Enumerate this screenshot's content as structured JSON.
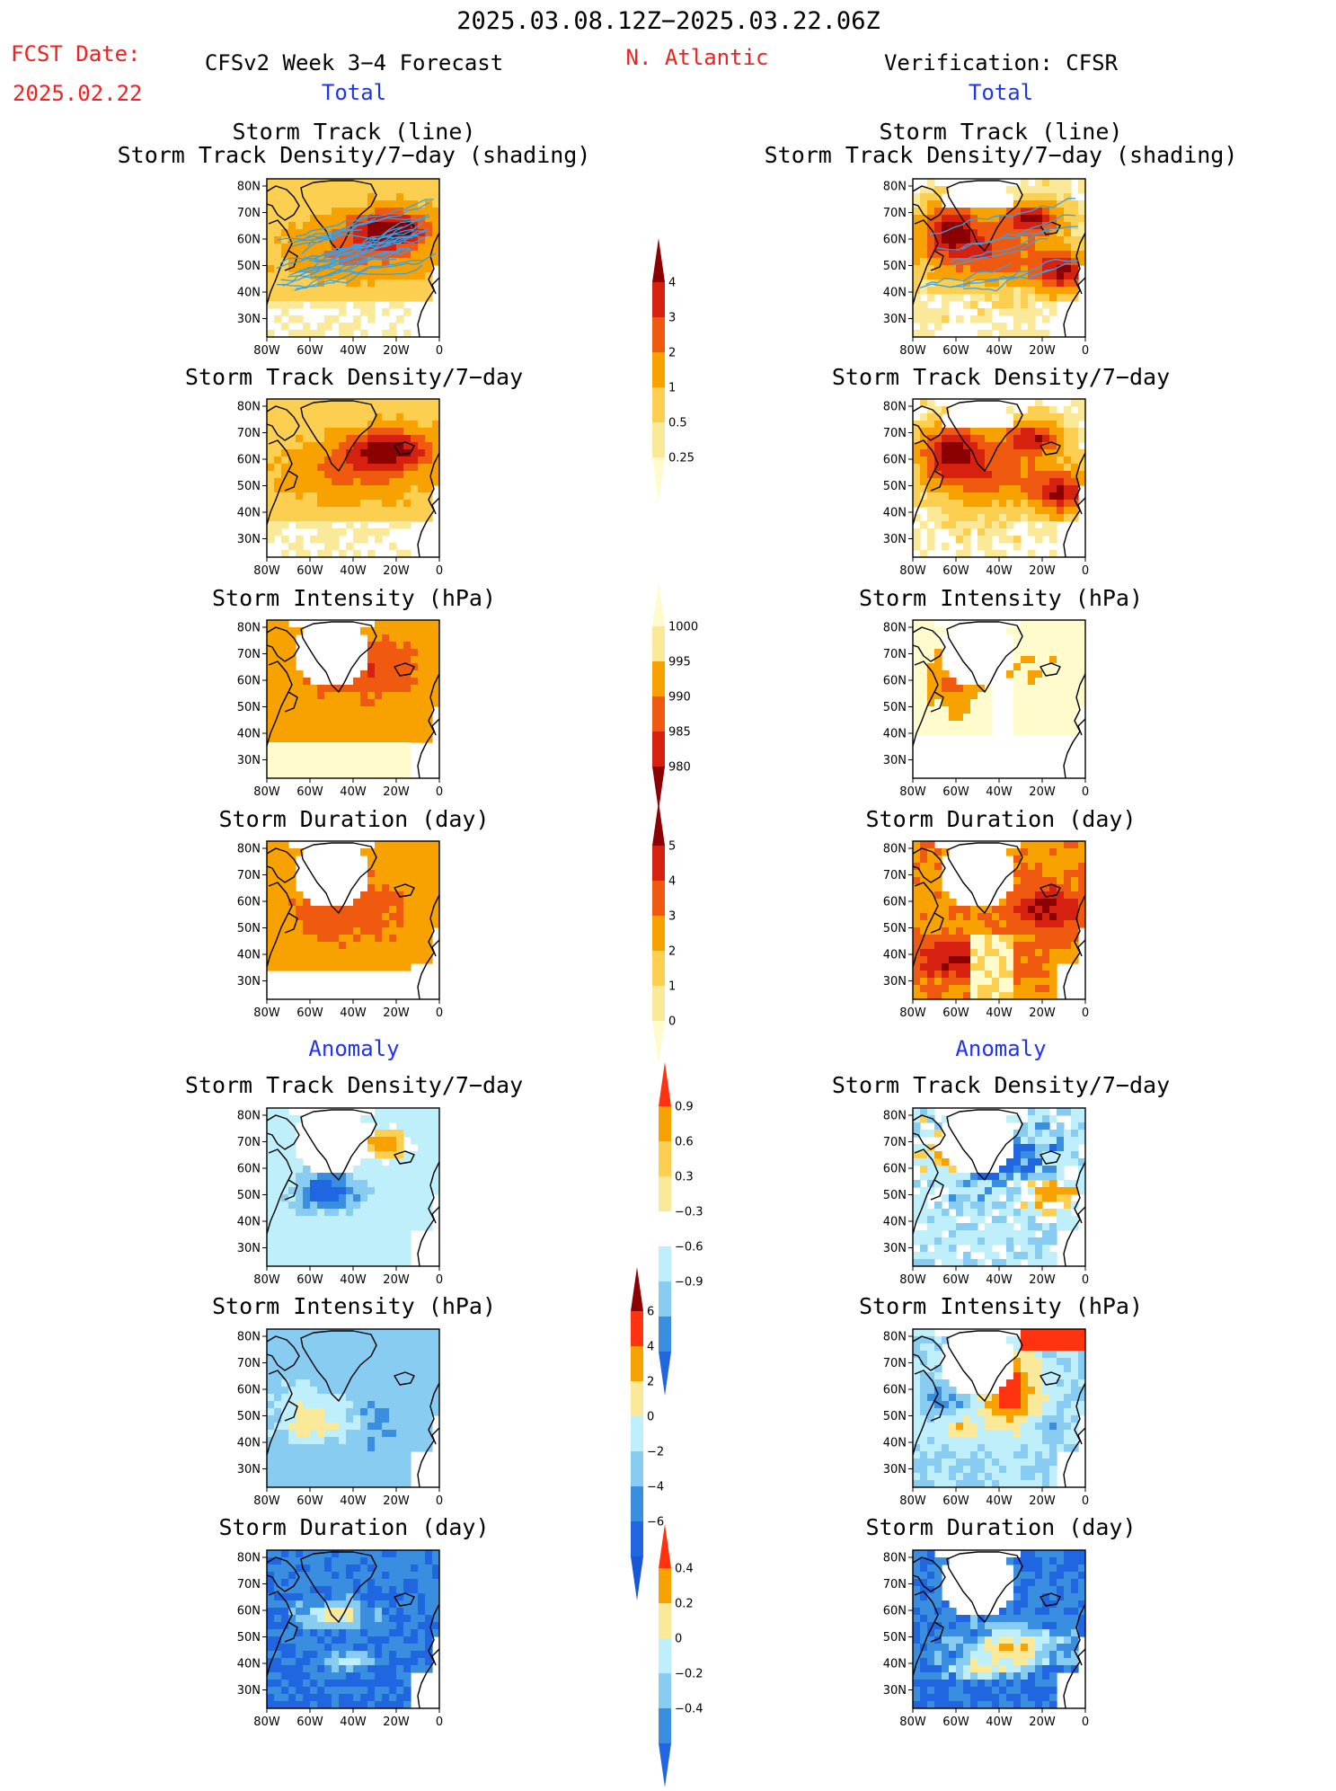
{
  "header": {
    "period": "2025.03.08.12Z−2025.03.22.06Z",
    "fcst_date_label": "FCST Date:",
    "fcst_date_value": "2025.02.22",
    "forecast_title": "CFSv2 Week 3−4 Forecast",
    "region": "N. Atlantic",
    "verification_title": "Verification: CFSR"
  },
  "sections": {
    "total_left": "Total",
    "total_right": "Total",
    "anomaly_left": "Anomaly",
    "anomaly_right": "Anomaly"
  },
  "titles": {
    "track_line_l1": "Storm Track (line)",
    "track_line_l2": "Storm Track Density/7−day (shading)",
    "track_line_r1": "Storm Track (line)",
    "track_line_r2": "Storm Track Density/7−day (shading)",
    "density_l": "Storm Track Density/7−day",
    "density_r": "Storm Track Density/7−day",
    "intensity_l": "Storm Intensity (hPa)",
    "intensity_r": "Storm Intensity (hPa)",
    "duration_l": "Storm Duration (day)",
    "duration_r": "Storm Duration (day)",
    "a_density_l": "Storm Track Density/7−day",
    "a_density_r": "Storm Track Density/7−day",
    "a_intensity_l": "Storm Intensity (hPa)",
    "a_intensity_r": "Storm Intensity (hPa)",
    "a_duration_l": "Storm Duration (day)",
    "a_duration_r": "Storm Duration (day)"
  },
  "axes": {
    "lat_ticks": [
      "80N",
      "70N",
      "60N",
      "50N",
      "40N",
      "30N"
    ],
    "lon_ticks": [
      "80W",
      "60W",
      "40W",
      "20W",
      "0"
    ]
  },
  "colorbars": {
    "density": {
      "labels": [
        "4",
        "3",
        "2",
        "1",
        "0.5",
        "0.25"
      ],
      "colors": [
        "#8b0000",
        "#d62010",
        "#f05a10",
        "#f7a200",
        "#fccf50",
        "#fbe99a",
        "#fffbcd"
      ]
    },
    "intensity": {
      "labels": [
        "1000",
        "995",
        "990",
        "985",
        "980"
      ],
      "colors": [
        "#fffbcd",
        "#fbe99a",
        "#f7a200",
        "#f05a10",
        "#d62010",
        "#8b0000"
      ]
    },
    "duration": {
      "labels": [
        "5",
        "4",
        "3",
        "2",
        "1",
        "0"
      ],
      "colors": [
        "#8b0000",
        "#d62010",
        "#f05a10",
        "#f7a200",
        "#fccf50",
        "#fbe99a",
        "#fffbcd"
      ]
    },
    "a_density": {
      "labels": [
        "0.9",
        "0.6",
        "0.3",
        "−0.3",
        "−0.6",
        "−0.9"
      ],
      "colors": [
        "#ff3310",
        "#f7a200",
        "#fccf50",
        "#fbe99a",
        "#ffffff",
        "#bfeffb",
        "#88ccf2",
        "#3a8ee0",
        "#1f66e0"
      ]
    },
    "a_intensity": {
      "labels": [
        "6",
        "4",
        "2",
        "0",
        "−2",
        "−4",
        "−6"
      ],
      "colors": [
        "#8b0000",
        "#ff3310",
        "#f7a200",
        "#fbe99a",
        "#bfeffb",
        "#88ccf2",
        "#3a8ee0",
        "#1f66e0",
        "#1858d8"
      ]
    },
    "a_duration": {
      "labels": [
        "0.4",
        "0.2",
        "0",
        "−0.2",
        "−0.4"
      ],
      "colors": [
        "#ff3310",
        "#f7a200",
        "#fbe99a",
        "#bfeffb",
        "#88ccf2",
        "#3a8ee0",
        "#1f66e0"
      ]
    }
  }
}
